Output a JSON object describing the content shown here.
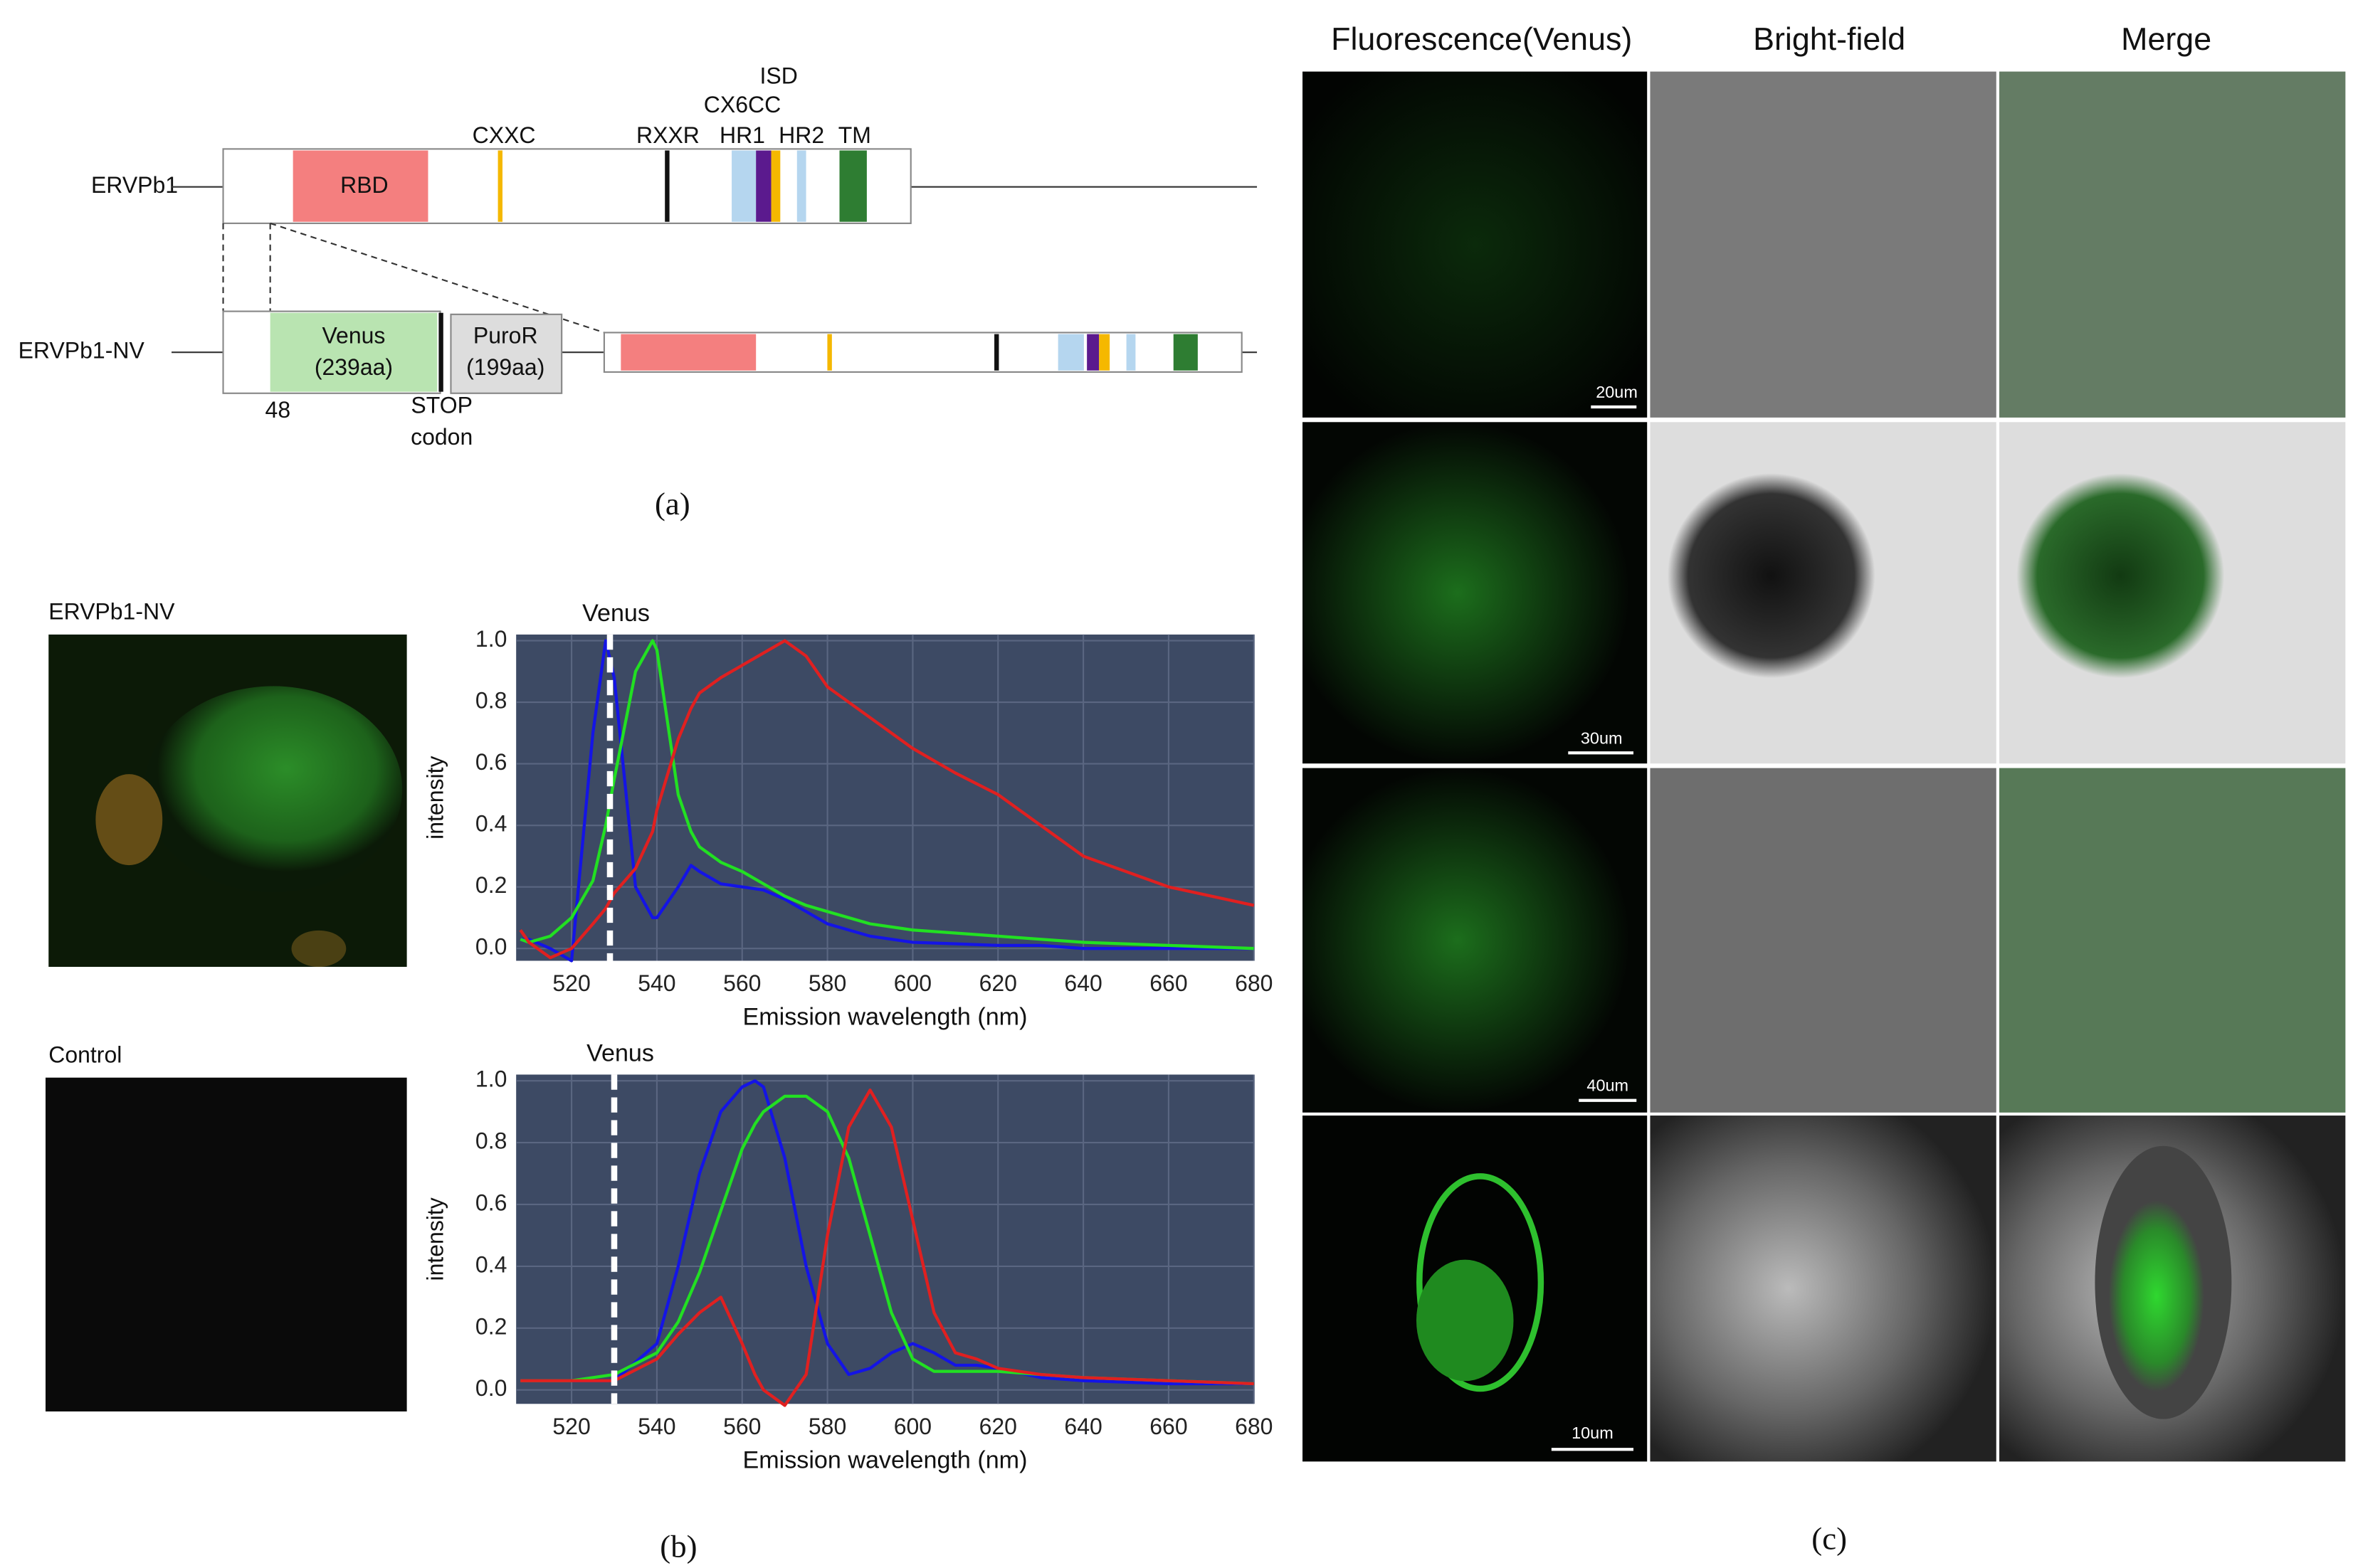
{
  "panel_a": {
    "label": "(a)",
    "row1_name": "ERVPb1",
    "row2_name": "ERVPb1-NV",
    "domains": {
      "rbd": "RBD",
      "cxxc": "CXXC",
      "rxxr": "RXXR",
      "isd": "ISD",
      "cx6cc": "CX6CC",
      "hr1": "HR1",
      "hr2": "HR2",
      "tm": "TM"
    },
    "insert": {
      "venus": "Venus",
      "venus_len": "(239aa)",
      "puro": "PuroR",
      "puro_len": "(199aa)",
      "position": "48",
      "stop": "STOP",
      "codon": "codon"
    }
  },
  "panel_b": {
    "label": "(b)",
    "image_labels": [
      "ERVPb1-NV",
      "Control"
    ]
  },
  "chart_data": [
    {
      "type": "line",
      "x_label": "Emission wavelength (nm)",
      "y_label": "intensity",
      "annotations": [
        {
          "text": "Venus",
          "x": 529
        }
      ],
      "x": [
        508,
        510,
        515,
        520,
        525,
        528,
        530,
        535,
        539,
        540,
        545,
        548,
        550,
        555,
        560,
        565,
        570,
        575,
        580,
        590,
        600,
        610,
        620,
        630,
        640,
        660,
        680
      ],
      "series": [
        {
          "name": "blue",
          "color": "#1414e6",
          "values": [
            0.03,
            0.03,
            0.0,
            -0.04,
            0.7,
            1.0,
            0.88,
            0.2,
            0.1,
            0.1,
            0.2,
            0.27,
            0.25,
            0.21,
            0.2,
            0.19,
            0.16,
            0.12,
            0.08,
            0.04,
            0.02,
            0.015,
            0.01,
            0.01,
            0.0,
            0.0,
            0.0
          ]
        },
        {
          "name": "green",
          "color": "#22e022",
          "values": [
            0.03,
            0.02,
            0.04,
            0.1,
            0.22,
            0.4,
            0.55,
            0.9,
            1.0,
            0.97,
            0.5,
            0.38,
            0.33,
            0.28,
            0.25,
            0.21,
            0.17,
            0.14,
            0.12,
            0.08,
            0.06,
            0.05,
            0.04,
            0.03,
            0.02,
            0.01,
            0.0
          ]
        },
        {
          "name": "red",
          "color": "#e02020",
          "values": [
            0.06,
            0.02,
            -0.03,
            0.0,
            0.08,
            0.13,
            0.18,
            0.26,
            0.38,
            0.45,
            0.68,
            0.78,
            0.83,
            0.88,
            0.92,
            0.96,
            1.0,
            0.95,
            0.85,
            0.75,
            0.65,
            0.57,
            0.5,
            0.4,
            0.3,
            0.2,
            0.14
          ]
        }
      ],
      "xlim": [
        507,
        680
      ],
      "ylim": [
        -0.04,
        1.02
      ],
      "xticks": [
        520,
        540,
        560,
        580,
        600,
        620,
        640,
        660,
        680
      ],
      "yticks": [
        {
          "value": 0,
          "label": "0.0"
        },
        0.2,
        0.4,
        0.6,
        0.8,
        {
          "value": 1,
          "label": "1.0"
        }
      ],
      "grid": true
    },
    {
      "type": "line",
      "x_label": "Emission wavelength (nm)",
      "y_label": "intensity",
      "annotations": [
        {
          "text": "Venus",
          "x": 530
        }
      ],
      "x": [
        508,
        520,
        530,
        540,
        545,
        550,
        555,
        560,
        563,
        565,
        570,
        575,
        580,
        585,
        590,
        595,
        600,
        605,
        610,
        615,
        620,
        630,
        640,
        660,
        680
      ],
      "series": [
        {
          "name": "blue",
          "color": "#1414e6",
          "values": [
            0.03,
            0.03,
            0.03,
            0.15,
            0.4,
            0.7,
            0.9,
            0.98,
            1.0,
            0.98,
            0.75,
            0.4,
            0.15,
            0.05,
            0.07,
            0.12,
            0.15,
            0.12,
            0.08,
            0.08,
            0.07,
            0.04,
            0.03,
            0.02,
            0.02
          ]
        },
        {
          "name": "green",
          "color": "#22e022",
          "values": [
            0.03,
            0.03,
            0.05,
            0.12,
            0.22,
            0.38,
            0.58,
            0.78,
            0.86,
            0.9,
            0.95,
            0.95,
            0.9,
            0.75,
            0.5,
            0.25,
            0.1,
            0.06,
            0.06,
            0.06,
            0.06,
            0.05,
            0.04,
            0.03,
            0.02
          ]
        },
        {
          "name": "red",
          "color": "#e02020",
          "values": [
            0.03,
            0.03,
            0.03,
            0.1,
            0.18,
            0.25,
            0.3,
            0.15,
            0.05,
            0.0,
            -0.05,
            0.05,
            0.5,
            0.85,
            0.97,
            0.85,
            0.55,
            0.25,
            0.12,
            0.1,
            0.07,
            0.05,
            0.04,
            0.03,
            0.02
          ]
        }
      ],
      "xlim": [
        507,
        680
      ],
      "ylim": [
        -0.045,
        1.02
      ],
      "xticks": [
        520,
        540,
        560,
        580,
        600,
        620,
        640,
        660,
        680
      ],
      "yticks": [
        {
          "value": 0,
          "label": "0.0"
        },
        0.2,
        0.4,
        0.6,
        0.8,
        {
          "value": 1,
          "label": "1.0"
        }
      ],
      "grid": true
    }
  ],
  "panel_c": {
    "label": "(c)",
    "columns": [
      "Fluorescence(Venus)",
      "Bright-field",
      "Merge"
    ],
    "scale_bars": [
      "20um",
      "30um",
      "40um",
      "10um"
    ]
  }
}
